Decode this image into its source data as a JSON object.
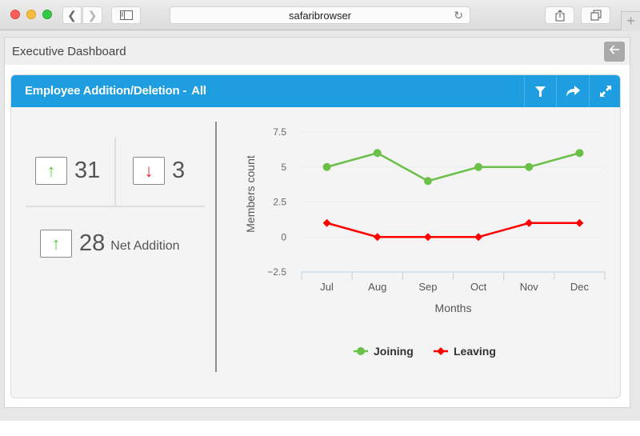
{
  "browser": {
    "address": "safaribrowser",
    "icons": {
      "back": "chevron-left-icon",
      "forward": "chevron-right-icon",
      "sidebar": "sidebar-icon",
      "reload": "reload-icon",
      "share": "share-icon",
      "tabs": "tabs-icon",
      "new_tab": "plus-icon"
    }
  },
  "page": {
    "title": "Executive Dashboard",
    "back_icon": "arrow-left-icon"
  },
  "widget": {
    "title": "Employee Addition/Deletion -",
    "scope": "All",
    "header_color": "#1e9ee0",
    "actions": [
      {
        "name": "filter",
        "icon": "filter-icon"
      },
      {
        "name": "share",
        "icon": "share-arrow-icon"
      },
      {
        "name": "expand",
        "icon": "expand-icon"
      }
    ]
  },
  "kpis": {
    "joined": {
      "value": "31",
      "icon": "arrow-up-icon",
      "color": "#5cc93b"
    },
    "left": {
      "value": "3",
      "icon": "arrow-down-icon",
      "color": "#e8202a"
    },
    "net": {
      "value": "28",
      "label": "Net Addition",
      "icon": "arrow-up-icon",
      "color": "#5cc93b"
    }
  },
  "chart_data": {
    "type": "line",
    "title": "",
    "xlabel": "Months",
    "ylabel": "Members count",
    "categories": [
      "Jul",
      "Aug",
      "Sep",
      "Oct",
      "Nov",
      "Dec"
    ],
    "series": [
      {
        "name": "Joining",
        "values": [
          5,
          6,
          4,
          5,
          5,
          6
        ],
        "color": "#6cc04a",
        "marker": "circle"
      },
      {
        "name": "Leaving",
        "values": [
          1,
          0,
          0,
          0,
          1,
          1
        ],
        "color": "#ff0000",
        "marker": "diamond"
      }
    ],
    "ylim": [
      -2.5,
      7.5
    ],
    "yticks": [
      "7.5",
      "5",
      "2.5",
      "0",
      "-2.5"
    ],
    "grid": true,
    "legend_position": "bottom"
  }
}
